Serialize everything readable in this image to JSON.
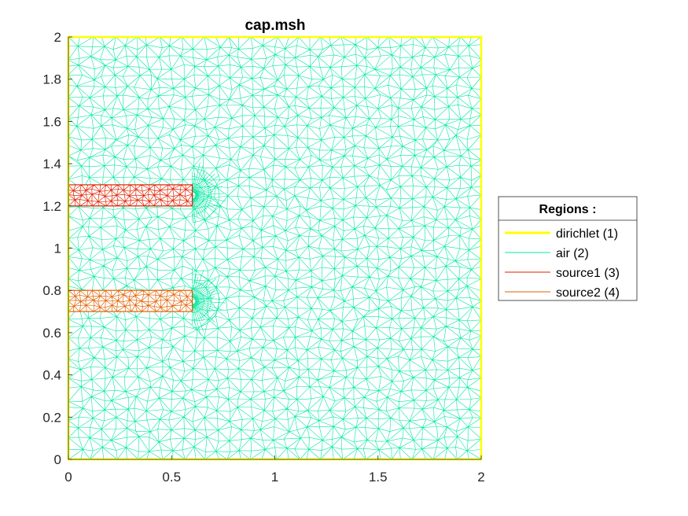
{
  "chart_data": {
    "type": "mesh",
    "title": "cap.msh",
    "xlabel": "",
    "ylabel": "",
    "xlim": [
      0,
      2
    ],
    "ylim": [
      0,
      2
    ],
    "xticks": [
      0,
      0.5,
      1,
      1.5,
      2
    ],
    "xtick_labels": [
      "0",
      "0.5",
      "1",
      "1.5",
      "2"
    ],
    "yticks": [
      0,
      0.2,
      0.4,
      0.6,
      0.8,
      1,
      1.2,
      1.4,
      1.6,
      1.8,
      2
    ],
    "ytick_labels": [
      "0",
      "0.2",
      "0.4",
      "0.6",
      "0.8",
      "1",
      "1.2",
      "1.4",
      "1.6",
      "1.8",
      "2"
    ],
    "grid": false,
    "legend": {
      "title": "Regions :",
      "position": "right-outside",
      "entries": [
        {
          "label": "dirichlet (1)",
          "color": "#ffff00",
          "line": "thick"
        },
        {
          "label": "air (2)",
          "color": "#00e8a0",
          "line": "thin"
        },
        {
          "label": "source1 (3)",
          "color": "#e02000",
          "line": "thin"
        },
        {
          "label": "source2 (4)",
          "color": "#e06000",
          "line": "thin"
        }
      ]
    },
    "regions": [
      {
        "name": "dirichlet (1)",
        "kind": "boundary",
        "x0": 0,
        "x1": 2,
        "y0": 0,
        "y1": 2,
        "color": "#ffff00"
      },
      {
        "name": "air (2)",
        "kind": "mesh",
        "x0": 0,
        "x1": 2,
        "y0": 0,
        "y1": 2,
        "color": "#00e8a0"
      },
      {
        "name": "source1 (3)",
        "kind": "mesh",
        "x0": 0,
        "x1": 0.6,
        "y0": 1.2,
        "y1": 1.3,
        "color": "#e02000"
      },
      {
        "name": "source2 (4)",
        "kind": "mesh",
        "x0": 0,
        "x1": 0.6,
        "y0": 0.7,
        "y1": 0.8,
        "color": "#e06000"
      }
    ]
  }
}
